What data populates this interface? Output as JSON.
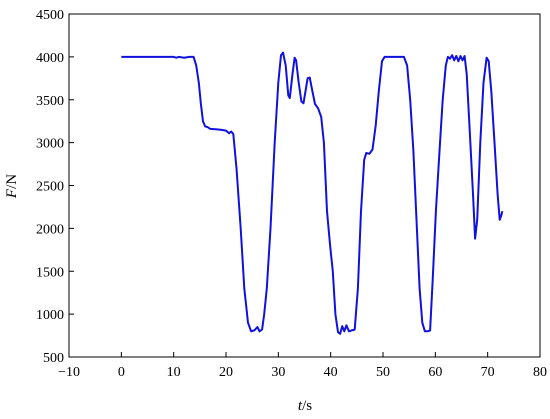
{
  "chart_data": {
    "type": "line",
    "xlabel_var": "t",
    "xlabel_unit": "/s",
    "ylabel_var": "F",
    "ylabel_unit": "/N",
    "xlim": [
      -10,
      80
    ],
    "ylim": [
      500,
      4500
    ],
    "xticks": [
      -10,
      0,
      10,
      20,
      30,
      40,
      50,
      60,
      70,
      80
    ],
    "yticks": [
      500,
      1000,
      1500,
      2000,
      2500,
      3000,
      3500,
      4000,
      4500
    ],
    "grid": false,
    "series": [
      {
        "color": "#1111dd",
        "points": [
          [
            0,
            4000
          ],
          [
            5,
            4000
          ],
          [
            10,
            4000
          ],
          [
            10.5,
            3990
          ],
          [
            11,
            4000
          ],
          [
            12,
            3990
          ],
          [
            13,
            4000
          ],
          [
            13.8,
            4000
          ],
          [
            14.3,
            3900
          ],
          [
            14.8,
            3700
          ],
          [
            15.2,
            3450
          ],
          [
            15.6,
            3250
          ],
          [
            16,
            3190
          ],
          [
            16.5,
            3180
          ],
          [
            17,
            3160
          ],
          [
            18,
            3155
          ],
          [
            19,
            3150
          ],
          [
            20,
            3140
          ],
          [
            20.6,
            3110
          ],
          [
            21,
            3130
          ],
          [
            21.4,
            3100
          ],
          [
            22,
            2700
          ],
          [
            22.8,
            2000
          ],
          [
            23.5,
            1300
          ],
          [
            24.2,
            900
          ],
          [
            24.8,
            800
          ],
          [
            25.4,
            810
          ],
          [
            26,
            850
          ],
          [
            26.4,
            800
          ],
          [
            26.9,
            820
          ],
          [
            27.3,
            1000
          ],
          [
            27.8,
            1300
          ],
          [
            28.5,
            2000
          ],
          [
            29.3,
            3000
          ],
          [
            30,
            3700
          ],
          [
            30.5,
            4020
          ],
          [
            30.9,
            4050
          ],
          [
            31.4,
            3900
          ],
          [
            31.9,
            3550
          ],
          [
            32.2,
            3520
          ],
          [
            32.7,
            3800
          ],
          [
            33.1,
            3990
          ],
          [
            33.4,
            3960
          ],
          [
            33.9,
            3700
          ],
          [
            34.4,
            3480
          ],
          [
            34.8,
            3460
          ],
          [
            35.2,
            3600
          ],
          [
            35.6,
            3750
          ],
          [
            36,
            3760
          ],
          [
            36.5,
            3600
          ],
          [
            37,
            3450
          ],
          [
            37.6,
            3400
          ],
          [
            38.2,
            3300
          ],
          [
            38.7,
            3000
          ],
          [
            39.3,
            2200
          ],
          [
            39.9,
            1800
          ],
          [
            40.4,
            1500
          ],
          [
            40.9,
            1000
          ],
          [
            41.4,
            790
          ],
          [
            41.8,
            770
          ],
          [
            42.2,
            860
          ],
          [
            42.6,
            800
          ],
          [
            43,
            870
          ],
          [
            43.5,
            800
          ],
          [
            44,
            810
          ],
          [
            44.6,
            820
          ],
          [
            45.2,
            1300
          ],
          [
            45.8,
            2200
          ],
          [
            46.4,
            2800
          ],
          [
            46.8,
            2880
          ],
          [
            47.4,
            2870
          ],
          [
            48,
            2920
          ],
          [
            48.6,
            3200
          ],
          [
            49.2,
            3600
          ],
          [
            49.8,
            3950
          ],
          [
            50.3,
            4000
          ],
          [
            51,
            4000
          ],
          [
            52,
            4000
          ],
          [
            53,
            4000
          ],
          [
            54,
            4000
          ],
          [
            54.6,
            3900
          ],
          [
            55.2,
            3500
          ],
          [
            55.8,
            2900
          ],
          [
            56.4,
            2100
          ],
          [
            57,
            1300
          ],
          [
            57.5,
            900
          ],
          [
            58,
            800
          ],
          [
            58.5,
            800
          ],
          [
            59,
            810
          ],
          [
            59.5,
            1400
          ],
          [
            60.1,
            2200
          ],
          [
            60.8,
            2900
          ],
          [
            61.4,
            3500
          ],
          [
            62,
            3900
          ],
          [
            62.4,
            4000
          ],
          [
            62.8,
            3980
          ],
          [
            63.2,
            4020
          ],
          [
            63.6,
            3960
          ],
          [
            64,
            4010
          ],
          [
            64.4,
            3950
          ],
          [
            64.8,
            4010
          ],
          [
            65.2,
            3960
          ],
          [
            65.6,
            4010
          ],
          [
            66,
            3800
          ],
          [
            66.6,
            3100
          ],
          [
            67.2,
            2400
          ],
          [
            67.6,
            1880
          ],
          [
            68,
            2100
          ],
          [
            68.6,
            3000
          ],
          [
            69.2,
            3700
          ],
          [
            69.8,
            3990
          ],
          [
            70.2,
            3950
          ],
          [
            70.7,
            3600
          ],
          [
            71.3,
            3000
          ],
          [
            71.9,
            2400
          ],
          [
            72.3,
            2100
          ],
          [
            72.6,
            2150
          ],
          [
            72.8,
            2200
          ]
        ]
      }
    ]
  }
}
